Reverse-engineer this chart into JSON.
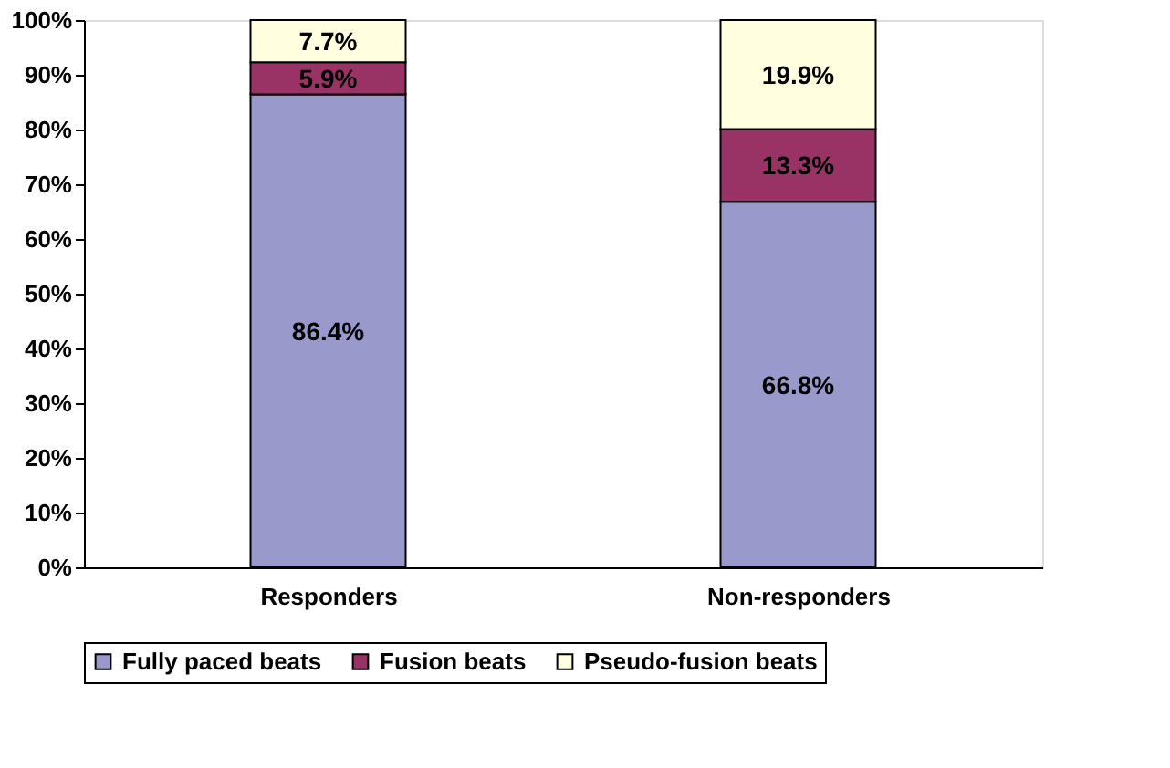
{
  "chart_data": {
    "type": "bar",
    "stacked": true,
    "categories": [
      "Responders",
      "Non-responders"
    ],
    "series": [
      {
        "name": "Fully paced beats",
        "color": "#9999cc",
        "values": [
          86.4,
          66.8
        ]
      },
      {
        "name": "Fusion beats",
        "color": "#993366",
        "values": [
          5.9,
          13.3
        ]
      },
      {
        "name": "Pseudo-fusion beats",
        "color": "#ffffe0",
        "values": [
          7.7,
          19.9
        ]
      }
    ],
    "value_labels": [
      [
        "86.4%",
        "66.8%"
      ],
      [
        "5.9%",
        "13.3%"
      ],
      [
        "7.7%",
        "19.9%"
      ]
    ],
    "ylim": [
      0,
      100
    ],
    "yticks": [
      {
        "value": 0,
        "label": "0%"
      },
      {
        "value": 10,
        "label": "10%"
      },
      {
        "value": 20,
        "label": "20%"
      },
      {
        "value": 30,
        "label": "30%"
      },
      {
        "value": 40,
        "label": "40%"
      },
      {
        "value": 50,
        "label": "50%"
      },
      {
        "value": 60,
        "label": "60%"
      },
      {
        "value": 70,
        "label": "70%"
      },
      {
        "value": 80,
        "label": "80%"
      },
      {
        "value": 90,
        "label": "90%"
      },
      {
        "value": 100,
        "label": "100%"
      }
    ],
    "grid": false,
    "legend": "bottom"
  }
}
